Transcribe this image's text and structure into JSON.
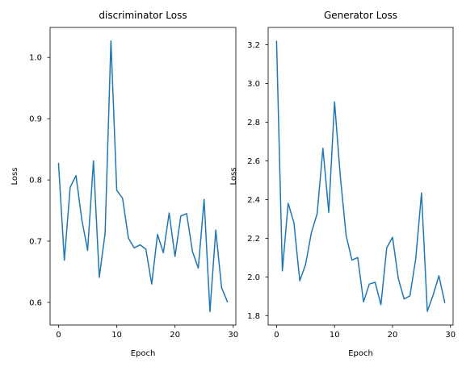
{
  "chart_data": [
    {
      "type": "line",
      "title": "discriminator Loss",
      "xlabel": "Epoch",
      "ylabel": "Loss",
      "xlim": [
        -1.45,
        30.45
      ],
      "ylim": [
        0.563,
        1.049
      ],
      "xticks": [
        0,
        10,
        20,
        30
      ],
      "yticks": [
        0.6,
        0.7,
        0.8,
        0.9,
        1.0
      ],
      "ytick_labels": [
        "0.6",
        "0.7",
        "0.8",
        "0.9",
        "1.0"
      ],
      "grid": false,
      "color": "#1f77b4",
      "series": [
        {
          "x": [
            0,
            1,
            2,
            3,
            4,
            5,
            6,
            7,
            8,
            9,
            10,
            11,
            12,
            13,
            14,
            15,
            16,
            17,
            18,
            19,
            20,
            21,
            22,
            23,
            24,
            25,
            26,
            27,
            28,
            29
          ],
          "values": [
            0.827,
            0.669,
            0.788,
            0.807,
            0.735,
            0.685,
            0.831,
            0.641,
            0.713,
            1.027,
            0.783,
            0.77,
            0.705,
            0.689,
            0.694,
            0.687,
            0.63,
            0.711,
            0.681,
            0.746,
            0.675,
            0.741,
            0.745,
            0.683,
            0.656,
            0.768,
            0.585,
            0.718,
            0.624,
            0.601
          ]
        }
      ]
    },
    {
      "type": "line",
      "title": "Generator Loss",
      "xlabel": "Epoch",
      "ylabel": "Loss",
      "xlim": [
        -1.45,
        30.45
      ],
      "ylim": [
        1.751,
        3.29
      ],
      "xticks": [
        0,
        10,
        20,
        30
      ],
      "yticks": [
        1.8,
        2.0,
        2.2,
        2.4,
        2.6,
        2.8,
        3.0,
        3.2
      ],
      "ytick_labels": [
        "1.8",
        "2.0",
        "2.2",
        "2.4",
        "2.6",
        "2.8",
        "3.0",
        "3.2"
      ],
      "grid": false,
      "color": "#1f77b4",
      "series": [
        {
          "x": [
            0,
            1,
            2,
            3,
            4,
            5,
            6,
            7,
            8,
            9,
            10,
            11,
            12,
            13,
            14,
            15,
            16,
            17,
            18,
            19,
            20,
            21,
            22,
            23,
            24,
            25,
            26,
            27,
            28,
            29
          ],
          "values": [
            3.218,
            2.031,
            2.381,
            2.279,
            1.98,
            2.064,
            2.228,
            2.327,
            2.665,
            2.334,
            2.905,
            2.519,
            2.213,
            2.087,
            2.1,
            1.871,
            1.963,
            1.972,
            1.856,
            2.15,
            2.205,
            1.991,
            1.886,
            1.902,
            2.093,
            2.434,
            1.822,
            1.906,
            2.006,
            1.868
          ]
        }
      ]
    }
  ]
}
